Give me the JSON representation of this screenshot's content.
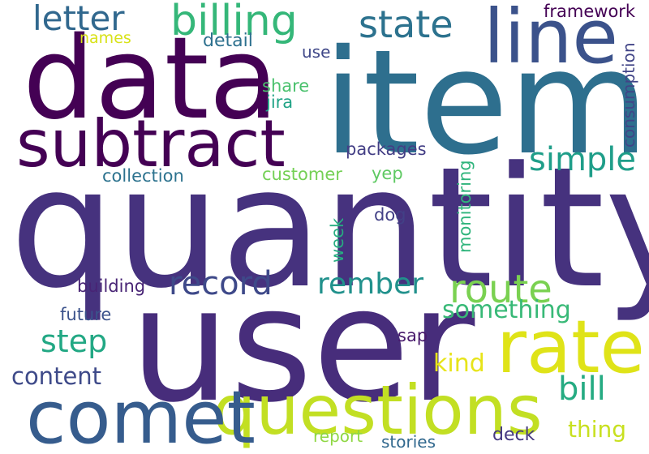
{
  "words": [
    {
      "text": "quantity",
      "color": "#46327e",
      "rotate": 0
    },
    {
      "text": "user",
      "color": "#472d7b",
      "rotate": 0
    },
    {
      "text": "item",
      "color": "#2e6f8e",
      "rotate": 0
    },
    {
      "text": "data",
      "color": "#440154",
      "rotate": 0
    },
    {
      "text": "questions",
      "color": "#c2df23",
      "rotate": 0
    },
    {
      "text": "comet",
      "color": "#365c8d",
      "rotate": 0
    },
    {
      "text": "subtract",
      "color": "#440154",
      "rotate": 0
    },
    {
      "text": "rate",
      "color": "#dfe318",
      "rotate": 0
    },
    {
      "text": "line",
      "color": "#3b528b",
      "rotate": 0
    },
    {
      "text": "billing",
      "color": "#35b779",
      "rotate": 0
    },
    {
      "text": "route",
      "color": "#7ad151",
      "rotate": 0
    },
    {
      "text": "state",
      "color": "#2c728e",
      "rotate": 0
    },
    {
      "text": "letter",
      "color": "#31688e",
      "rotate": 0
    },
    {
      "text": "record",
      "color": "#3e4989",
      "rotate": 0
    },
    {
      "text": "rember",
      "color": "#21918c",
      "rotate": 0
    },
    {
      "text": "simple",
      "color": "#1f9e89",
      "rotate": 0
    },
    {
      "text": "bill",
      "color": "#25ab82",
      "rotate": 0
    },
    {
      "text": "step",
      "color": "#22a884",
      "rotate": 0
    },
    {
      "text": "something",
      "color": "#38b977",
      "rotate": 0
    },
    {
      "text": "content",
      "color": "#3e4a89",
      "rotate": 0
    },
    {
      "text": "kind",
      "color": "#e7e419",
      "rotate": 0
    },
    {
      "text": "thing",
      "color": "#c8e020",
      "rotate": 0
    },
    {
      "text": "framework",
      "color": "#440154",
      "rotate": 0
    },
    {
      "text": "names",
      "color": "#d8e219",
      "rotate": 0
    },
    {
      "text": "detail",
      "color": "#2d708e",
      "rotate": 0
    },
    {
      "text": "use",
      "color": "#3f4788",
      "rotate": 0
    },
    {
      "text": "share",
      "color": "#4ac16d",
      "rotate": 0
    },
    {
      "text": "jira",
      "color": "#20a386",
      "rotate": 0
    },
    {
      "text": "packages",
      "color": "#433e85",
      "rotate": 0
    },
    {
      "text": "collection",
      "color": "#2c728e",
      "rotate": 0
    },
    {
      "text": "customer",
      "color": "#74d055",
      "rotate": 0
    },
    {
      "text": "yep",
      "color": "#5ec962",
      "rotate": 0
    },
    {
      "text": "dog",
      "color": "#424086",
      "rotate": 0
    },
    {
      "text": "week",
      "color": "#27ad81",
      "rotate": -90
    },
    {
      "text": "monitoring",
      "color": "#2fb47c",
      "rotate": -90
    },
    {
      "text": "consumption",
      "color": "#414487",
      "rotate": -90
    },
    {
      "text": "building",
      "color": "#482475",
      "rotate": 0
    },
    {
      "text": "future",
      "color": "#3b528b",
      "rotate": 0
    },
    {
      "text": "sap",
      "color": "#481a6c",
      "rotate": 0
    },
    {
      "text": "report",
      "color": "#8fd744",
      "rotate": 0
    },
    {
      "text": "stories",
      "color": "#31688e",
      "rotate": 0
    },
    {
      "text": "deck",
      "color": "#453882",
      "rotate": 0
    }
  ]
}
